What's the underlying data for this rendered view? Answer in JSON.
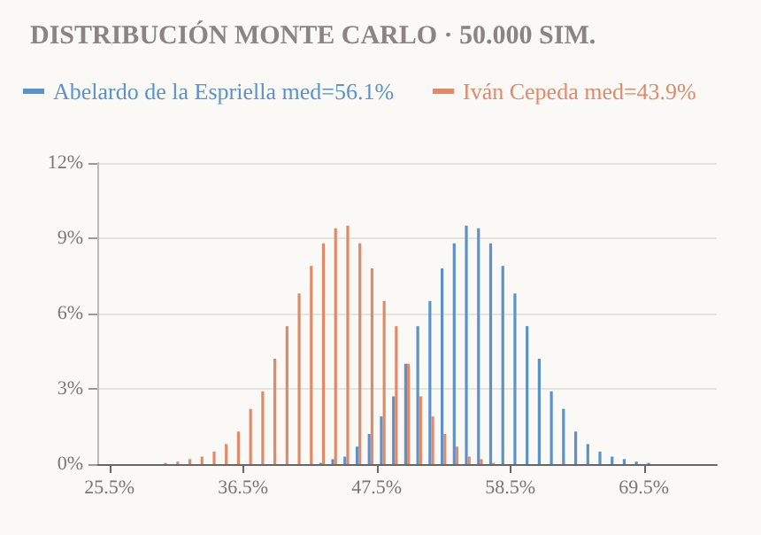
{
  "chart_data": {
    "type": "histogram",
    "title": "DISTRIBUCIÓN MONTE CARLO · 50.000 SIM.",
    "bins": [
      29.5,
      30.5,
      31.5,
      32.5,
      33.5,
      34.5,
      35.5,
      36.5,
      37.5,
      38.5,
      39.5,
      40.5,
      41.5,
      42.5,
      43.5,
      44.5,
      45.5,
      46.5,
      47.5,
      48.5,
      49.5,
      50.5,
      51.5,
      52.5,
      53.5,
      54.5,
      55.5,
      56.5,
      57.5,
      58.5,
      59.5,
      60.5,
      61.5,
      62.5,
      63.5,
      64.5,
      65.5,
      66.5,
      67.5,
      68.5,
      69.5,
      70.5
    ],
    "series": [
      {
        "name": "Abelardo de la Espriella med=56.1%",
        "color": "#5b92cc",
        "values": [
          null,
          null,
          null,
          null,
          null,
          null,
          null,
          null,
          null,
          null,
          null,
          null,
          null,
          0.05,
          0.2,
          0.3,
          0.7,
          1.2,
          1.9,
          2.7,
          4.0,
          5.5,
          6.5,
          7.8,
          8.8,
          9.5,
          9.4,
          8.8,
          7.9,
          6.8,
          5.5,
          4.2,
          2.9,
          2.2,
          1.3,
          0.8,
          0.5,
          0.3,
          0.2,
          0.1,
          0.05
        ]
      },
      {
        "name": "Iván Cepeda med=43.9%",
        "color": "#e08a6a",
        "values": [
          0.05,
          0.1,
          0.2,
          0.3,
          0.5,
          0.8,
          1.3,
          2.2,
          2.9,
          4.2,
          5.5,
          6.8,
          7.9,
          8.8,
          9.4,
          9.5,
          8.8,
          7.8,
          6.5,
          5.5,
          4.0,
          2.7,
          1.9,
          1.2,
          0.7,
          0.3,
          0.2,
          0.05,
          null,
          null,
          null,
          null,
          null,
          null,
          null,
          null,
          null,
          null,
          null,
          null,
          null
        ]
      }
    ],
    "xlim": [
      24.5,
      75.5
    ],
    "xticks": [
      {
        "value": 25.5,
        "label": "25.5%"
      },
      {
        "value": 36.5,
        "label": "36.5%"
      },
      {
        "value": 47.5,
        "label": "47.5%"
      },
      {
        "value": 58.5,
        "label": "58.5%"
      },
      {
        "value": 69.5,
        "label": "69.5%"
      }
    ],
    "ylim": [
      0,
      12
    ],
    "yticks": [
      {
        "value": 0,
        "label": "0%"
      },
      {
        "value": 3,
        "label": "3%"
      },
      {
        "value": 6,
        "label": "6%"
      },
      {
        "value": 9,
        "label": "9%"
      },
      {
        "value": 12,
        "label": "12%"
      }
    ],
    "grid": "y",
    "legend": "top left"
  }
}
